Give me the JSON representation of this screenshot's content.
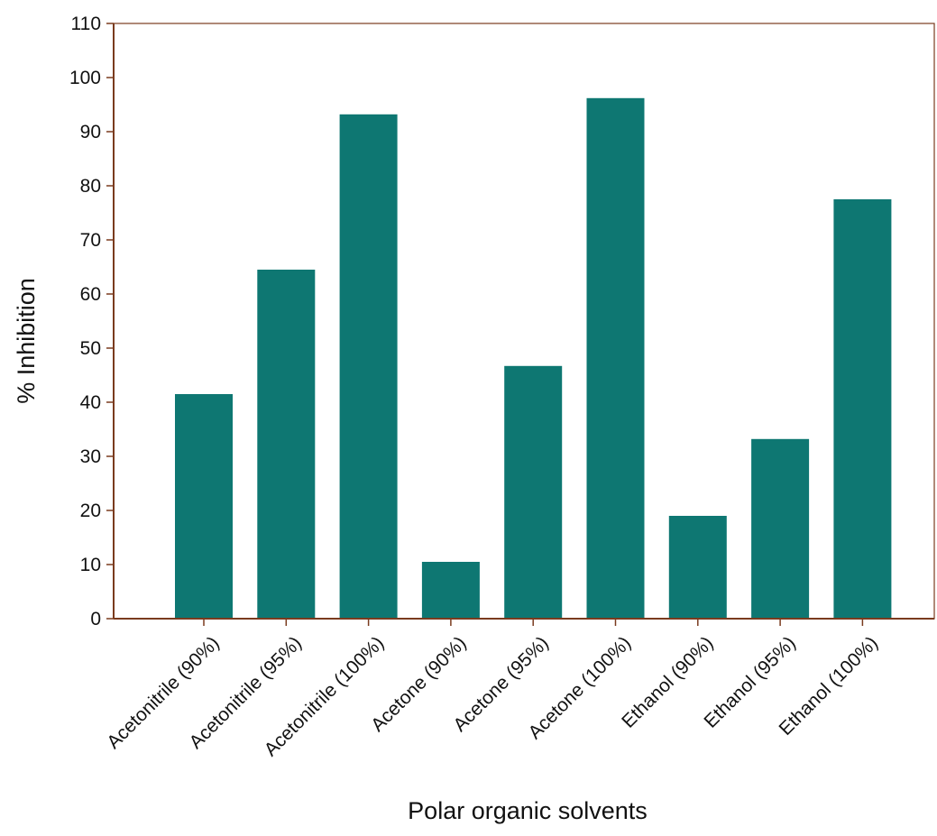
{
  "chart_data": {
    "type": "bar",
    "title": "",
    "xlabel": "Polar organic solvents",
    "ylabel": "% Inhibition",
    "categories": [
      "Acetonitrile (90%)",
      "Acetonitrile (95%)",
      "Acetonitrile (100%)",
      "Acetone (90%)",
      "Acetone (95%)",
      "Acetone (100%)",
      "Ethanol (90%)",
      "Ethanol (95%)",
      "Ethanol (100%)"
    ],
    "values": [
      41.5,
      64.5,
      93.2,
      10.5,
      46.7,
      96.2,
      19.0,
      33.2,
      77.5
    ],
    "ylim": [
      0,
      110
    ],
    "yticks": [
      0,
      10,
      20,
      30,
      40,
      50,
      60,
      70,
      80,
      90,
      100,
      110
    ],
    "grid": false,
    "legend": "none",
    "colors": {
      "bar": "#0e7772",
      "axis": "#7a3b1e",
      "text": "#111111"
    }
  }
}
